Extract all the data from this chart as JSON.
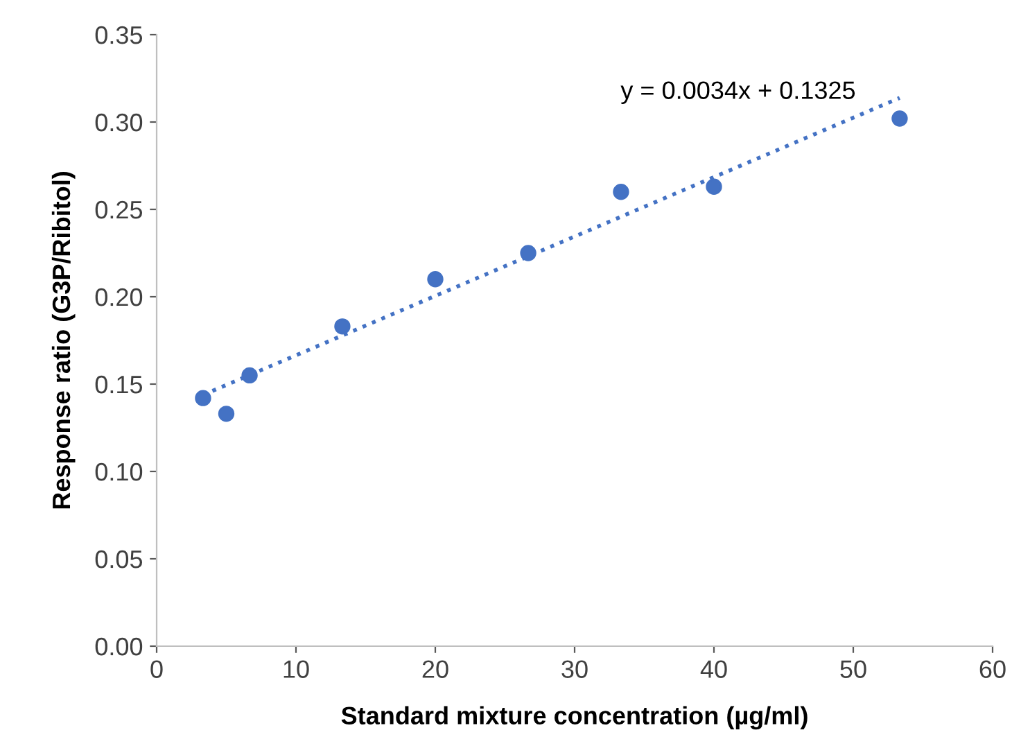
{
  "chart_data": {
    "type": "scatter",
    "xlabel": "Standard mixture concentration (µg/ml)",
    "ylabel": "Response ratio (G3P/Ribitol)",
    "xlim": [
      0,
      60
    ],
    "xticks": [
      0,
      10,
      20,
      30,
      40,
      50,
      60
    ],
    "ylim": [
      0,
      0.35
    ],
    "yticks": [
      {
        "value": 0,
        "label": "0.00"
      },
      {
        "value": 0.05,
        "label": "0.05"
      },
      {
        "value": 0.1,
        "label": "0.10"
      },
      {
        "value": 0.15,
        "label": "0.15"
      },
      {
        "value": 0.2,
        "label": "0.20"
      },
      {
        "value": 0.25,
        "label": "0.25"
      },
      {
        "value": 0.3,
        "label": "0.30"
      },
      {
        "value": 0.35,
        "label": "0.35"
      }
    ],
    "grid": false,
    "marker": "circle",
    "annotations": [
      "y = 0.0034x + 0.1325"
    ],
    "series": [
      {
        "color": "#4472c4",
        "x": [
          3.33,
          5,
          6.67,
          13.33,
          20,
          26.67,
          33.33,
          40,
          53.33
        ],
        "values": [
          0.142,
          0.133,
          0.155,
          0.183,
          0.21,
          0.225,
          0.26,
          0.263,
          0.302
        ]
      },
      {
        "type": "line",
        "color": "#4472c4",
        "line_style": "dotted",
        "marker": "none",
        "x": [
          3.33,
          53.33
        ],
        "values": [
          0.1438,
          0.3138
        ]
      }
    ]
  }
}
